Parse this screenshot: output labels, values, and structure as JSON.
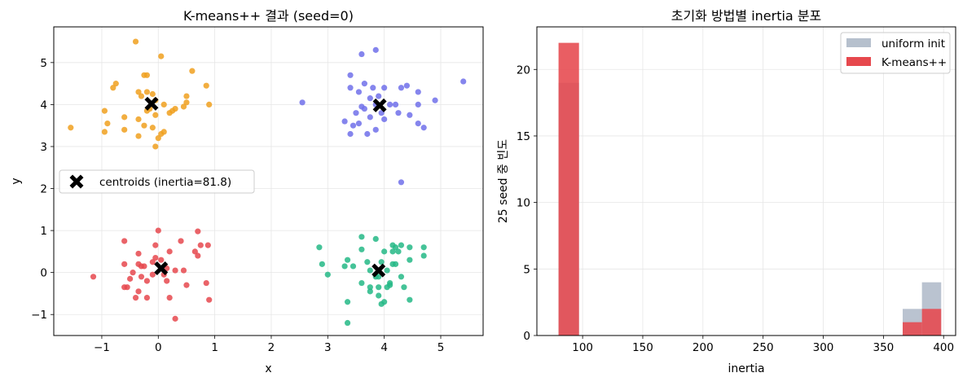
{
  "chart_data": [
    {
      "type": "scatter",
      "title": "K-means++ 결과 (seed=0)",
      "xlabel": "x",
      "ylabel": "y",
      "xlim": [
        -1.85,
        5.75
      ],
      "ylim": [
        -1.5,
        5.85
      ],
      "xticks": [
        -1,
        0,
        1,
        2,
        3,
        4,
        5
      ],
      "yticks": [
        -1,
        0,
        1,
        2,
        3,
        4,
        5
      ],
      "grid": true,
      "legend_position": "center-left",
      "series": [
        {
          "color": "#f0a01e",
          "points": [
            [
              -0.4,
              5.5
            ],
            [
              -0.25,
              4.7
            ],
            [
              -0.2,
              4.7
            ],
            [
              0.05,
              5.15
            ],
            [
              0.6,
              4.8
            ],
            [
              -0.75,
              4.5
            ],
            [
              -0.8,
              4.4
            ],
            [
              -0.35,
              4.3
            ],
            [
              -0.2,
              4.3
            ],
            [
              -0.1,
              4.25
            ],
            [
              0.5,
              4.2
            ],
            [
              0.85,
              4.45
            ],
            [
              -0.3,
              4.2
            ],
            [
              -0.05,
              4.1
            ],
            [
              0.1,
              4.0
            ],
            [
              0.3,
              3.9
            ],
            [
              0.45,
              3.95
            ],
            [
              0.5,
              4.05
            ],
            [
              0.9,
              4.0
            ],
            [
              -0.95,
              3.85
            ],
            [
              -0.2,
              3.85
            ],
            [
              0.2,
              3.8
            ],
            [
              0.25,
              3.85
            ],
            [
              -0.05,
              3.75
            ],
            [
              -0.6,
              3.7
            ],
            [
              -0.35,
              3.65
            ],
            [
              -0.9,
              3.55
            ],
            [
              -0.25,
              3.5
            ],
            [
              -0.1,
              3.45
            ],
            [
              0.05,
              3.3
            ],
            [
              0.0,
              3.2
            ],
            [
              -0.6,
              3.4
            ],
            [
              -0.95,
              3.35
            ],
            [
              -0.35,
              3.25
            ],
            [
              -1.55,
              3.45
            ],
            [
              -0.05,
              3.0
            ],
            [
              0.1,
              3.35
            ],
            [
              -0.15,
              3.9
            ]
          ]
        },
        {
          "color": "#7070ea",
          "points": [
            [
              3.85,
              5.3
            ],
            [
              3.6,
              5.2
            ],
            [
              5.4,
              4.55
            ],
            [
              3.4,
              4.7
            ],
            [
              3.65,
              4.5
            ],
            [
              4.4,
              4.45
            ],
            [
              4.3,
              4.4
            ],
            [
              3.4,
              4.4
            ],
            [
              3.8,
              4.4
            ],
            [
              4.0,
              4.4
            ],
            [
              4.6,
              4.3
            ],
            [
              3.55,
              4.3
            ],
            [
              3.9,
              4.2
            ],
            [
              3.75,
              4.15
            ],
            [
              4.9,
              4.1
            ],
            [
              4.2,
              4.0
            ],
            [
              4.6,
              4.0
            ],
            [
              2.55,
              4.05
            ],
            [
              3.85,
              4.0
            ],
            [
              4.1,
              4.0
            ],
            [
              3.6,
              3.95
            ],
            [
              3.5,
              3.8
            ],
            [
              3.95,
              3.8
            ],
            [
              4.25,
              3.8
            ],
            [
              4.45,
              3.75
            ],
            [
              3.75,
              3.7
            ],
            [
              3.3,
              3.6
            ],
            [
              4.0,
              3.65
            ],
            [
              3.55,
              3.55
            ],
            [
              4.6,
              3.55
            ],
            [
              4.7,
              3.45
            ],
            [
              3.85,
              3.4
            ],
            [
              3.45,
              3.5
            ],
            [
              3.4,
              3.3
            ],
            [
              3.7,
              3.3
            ],
            [
              4.3,
              2.15
            ],
            [
              3.65,
              3.9
            ]
          ]
        },
        {
          "color": "#e6484d",
          "points": [
            [
              0.0,
              1.0
            ],
            [
              0.7,
              0.98
            ],
            [
              0.4,
              0.75
            ],
            [
              -0.6,
              0.75
            ],
            [
              -0.05,
              0.65
            ],
            [
              0.75,
              0.65
            ],
            [
              0.88,
              0.65
            ],
            [
              0.2,
              0.5
            ],
            [
              0.65,
              0.5
            ],
            [
              -0.35,
              0.45
            ],
            [
              0.7,
              0.4
            ],
            [
              -0.05,
              0.35
            ],
            [
              0.05,
              0.3
            ],
            [
              -0.1,
              0.25
            ],
            [
              -0.6,
              0.2
            ],
            [
              -0.35,
              0.2
            ],
            [
              -0.3,
              0.15
            ],
            [
              -0.25,
              0.15
            ],
            [
              0.15,
              0.1
            ],
            [
              0.45,
              0.05
            ],
            [
              0.3,
              0.05
            ],
            [
              -0.45,
              0.0
            ],
            [
              0.1,
              -0.05
            ],
            [
              -0.1,
              -0.05
            ],
            [
              -0.3,
              -0.1
            ],
            [
              -1.15,
              -0.1
            ],
            [
              -0.2,
              -0.2
            ],
            [
              -0.5,
              -0.15
            ],
            [
              0.15,
              -0.2
            ],
            [
              0.85,
              -0.25
            ],
            [
              0.5,
              -0.3
            ],
            [
              -0.55,
              -0.35
            ],
            [
              -0.6,
              -0.35
            ],
            [
              -0.35,
              -0.45
            ],
            [
              -0.4,
              -0.6
            ],
            [
              -0.2,
              -0.6
            ],
            [
              0.2,
              -0.6
            ],
            [
              0.9,
              -0.65
            ],
            [
              0.3,
              -1.1
            ]
          ]
        },
        {
          "color": "#25b886",
          "points": [
            [
              3.35,
              -1.2
            ],
            [
              3.6,
              0.85
            ],
            [
              3.85,
              0.8
            ],
            [
              2.85,
              0.6
            ],
            [
              4.15,
              0.65
            ],
            [
              4.3,
              0.65
            ],
            [
              4.2,
              0.6
            ],
            [
              4.45,
              0.6
            ],
            [
              4.7,
              0.6
            ],
            [
              3.6,
              0.55
            ],
            [
              4.0,
              0.5
            ],
            [
              4.25,
              0.5
            ],
            [
              4.15,
              0.5
            ],
            [
              4.7,
              0.4
            ],
            [
              3.35,
              0.3
            ],
            [
              4.45,
              0.3
            ],
            [
              3.7,
              0.25
            ],
            [
              3.95,
              0.25
            ],
            [
              4.15,
              0.2
            ],
            [
              4.2,
              0.2
            ],
            [
              2.9,
              0.2
            ],
            [
              3.3,
              0.15
            ],
            [
              3.45,
              0.15
            ],
            [
              3.75,
              0.05
            ],
            [
              4.05,
              0.05
            ],
            [
              3.0,
              -0.05
            ],
            [
              3.85,
              -0.1
            ],
            [
              4.3,
              -0.1
            ],
            [
              3.6,
              -0.25
            ],
            [
              4.1,
              -0.25
            ],
            [
              4.1,
              -0.3
            ],
            [
              3.75,
              -0.35
            ],
            [
              3.9,
              -0.35
            ],
            [
              4.35,
              -0.35
            ],
            [
              4.05,
              -0.35
            ],
            [
              3.75,
              -0.45
            ],
            [
              3.9,
              -0.55
            ],
            [
              4.45,
              -0.65
            ],
            [
              3.35,
              -0.7
            ],
            [
              4.0,
              -0.7
            ],
            [
              3.95,
              -0.75
            ],
            [
              3.9,
              -0.1
            ]
          ]
        },
        {
          "name": "centroids (inertia=81.8)",
          "color": "#000000",
          "marker": "X",
          "points": [
            [
              -0.12,
              4.02
            ],
            [
              3.92,
              3.98
            ],
            [
              0.05,
              0.1
            ],
            [
              3.9,
              0.05
            ]
          ]
        }
      ]
    },
    {
      "type": "bar",
      "title": "초기화 방법별 inertia 분포",
      "xlabel": "inertia",
      "ylabel": "25 seed 중 빈도",
      "xlim": [
        62,
        410
      ],
      "ylim": [
        0,
        23.2
      ],
      "xticks": [
        100,
        150,
        200,
        250,
        300,
        350,
        400
      ],
      "yticks": [
        0,
        5,
        10,
        15,
        20
      ],
      "grid": true,
      "legend_position": "top-right",
      "series": [
        {
          "name": "uniform init",
          "color": "#b6c0cd",
          "bins": [
            {
              "x0": 80,
              "x1": 97,
              "count": 19
            },
            {
              "x0": 366,
              "x1": 382,
              "count": 2
            },
            {
              "x0": 382,
              "x1": 398,
              "count": 4
            }
          ]
        },
        {
          "name": "K-means++",
          "color": "#e6484d",
          "bins": [
            {
              "x0": 80,
              "x1": 97,
              "count": 22
            },
            {
              "x0": 366,
              "x1": 382,
              "count": 1
            },
            {
              "x0": 382,
              "x1": 398,
              "count": 2
            }
          ]
        }
      ]
    }
  ]
}
